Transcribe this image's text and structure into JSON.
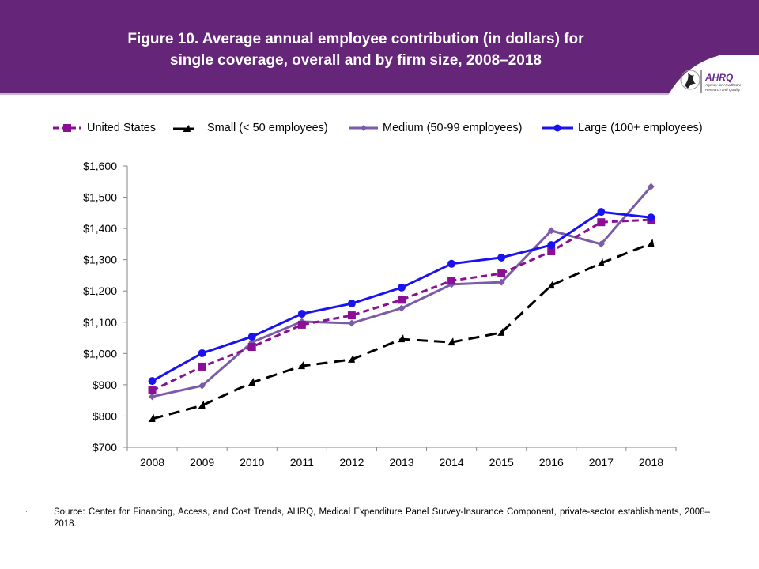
{
  "header": {
    "title_line1": "Figure 10. Average annual employee contribution (in dollars) for",
    "title_line2": "single coverage, overall and by firm size, 2008–2018",
    "background_color": "#652579",
    "logo": {
      "seal_icon": "hhs-eagle-seal-icon",
      "brand": "AHRQ",
      "tagline_line1": "Agency for Healthcare",
      "tagline_line2": "Research and Quality"
    }
  },
  "chart_data": {
    "type": "line",
    "title": "Figure 10. Average annual employee contribution (in dollars) for single coverage, overall and by firm size, 2008–2018",
    "xlabel": "",
    "ylabel": "",
    "categories": [
      "2008",
      "2009",
      "2010",
      "2011",
      "2012",
      "2013",
      "2014",
      "2015",
      "2016",
      "2017",
      "2018"
    ],
    "ylim": [
      700,
      1600
    ],
    "yticks": [
      700,
      800,
      900,
      1000,
      1100,
      1200,
      1300,
      1400,
      1500,
      1600
    ],
    "ytick_labels": [
      "$700",
      "$800",
      "$900",
      "$1,000",
      "$1,100",
      "$1,200",
      "$1,300",
      "$1,400",
      "$1,500",
      "$1,600"
    ],
    "grid": false,
    "legend_position": "top",
    "series": [
      {
        "name": "United States",
        "color": "#8B0F96",
        "line_style": "dashed",
        "marker": "square",
        "values": [
          882,
          958,
          1021,
          1092,
          1122,
          1172,
          1233,
          1256,
          1327,
          1420,
          1428
        ]
      },
      {
        "name": "Small (< 50 employees)",
        "color": "#000000",
        "line_style": "long-dashed",
        "marker": "triangle",
        "values": [
          791,
          834,
          907,
          960,
          981,
          1046,
          1036,
          1067,
          1218,
          1289,
          1352
        ]
      },
      {
        "name": "Medium (50-99 employees)",
        "color": "#7B5BA8",
        "line_style": "solid",
        "marker": "diamond",
        "values": [
          862,
          897,
          1036,
          1102,
          1097,
          1145,
          1221,
          1228,
          1393,
          1350,
          1534
        ]
      },
      {
        "name": "Large (100+ employees)",
        "color": "#1A12F0",
        "line_style": "solid",
        "marker": "circle",
        "values": [
          912,
          1001,
          1054,
          1127,
          1160,
          1211,
          1287,
          1307,
          1347,
          1453,
          1435
        ]
      }
    ]
  },
  "footer": {
    "bullet": "·",
    "source": "Source: Center for Financing, Access, and Cost Trends, AHRQ, Medical Expenditure Panel Survey-Insurance  Component, private-sector establishments, 2008–2018."
  }
}
